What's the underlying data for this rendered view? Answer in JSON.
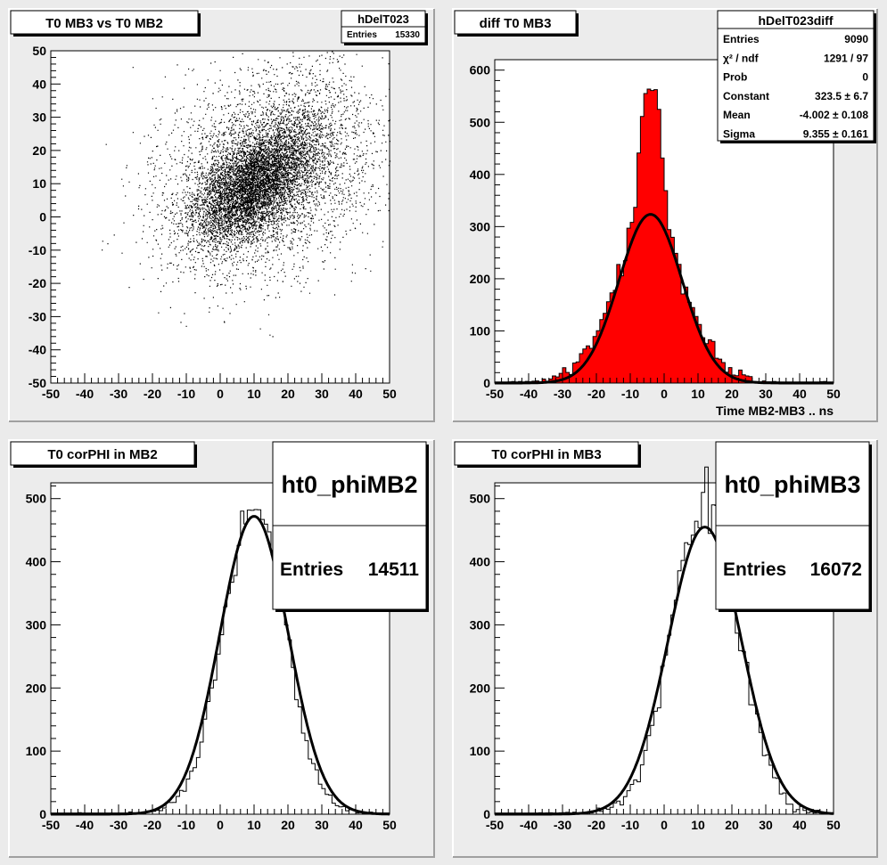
{
  "chart_data": [
    {
      "type": "scatter",
      "panel_title": "T0 MB3 vs T0 MB2",
      "stats": {
        "name": "hDelT023",
        "rows": [
          {
            "label": "Entries",
            "value": "15330"
          }
        ]
      },
      "xlim": [
        -50,
        50
      ],
      "ylim": [
        -50,
        50
      ],
      "x_ticks": [
        -50,
        -40,
        -30,
        -20,
        -10,
        0,
        10,
        20,
        30,
        40,
        50
      ],
      "y_ticks": [
        -50,
        -40,
        -30,
        -20,
        -10,
        0,
        10,
        20,
        30,
        40,
        50
      ],
      "xlabel": "",
      "ylabel": "",
      "clusters": [
        {
          "cx": 10,
          "cy": 10,
          "sx": 9,
          "sy": 9,
          "rho": 0.55,
          "fraction": 0.6
        },
        {
          "cx": 15,
          "cy": 15,
          "sx": 16,
          "sy": 16,
          "rho": 0.25,
          "fraction": 0.4
        }
      ],
      "color": "#000000"
    },
    {
      "type": "bar",
      "panel_title": "diff T0 MB3",
      "stats": {
        "name": "hDelT023diff",
        "rows": [
          {
            "label": "Entries",
            "value": "9090"
          },
          {
            "label": "χ² / ndf",
            "value": "1291 / 97"
          },
          {
            "label": "Prob",
            "value": "0"
          },
          {
            "label": "Constant",
            "value": "323.5 ± 6.7"
          },
          {
            "label": "Mean",
            "value": "-4.002 ± 0.108"
          },
          {
            "label": "Sigma",
            "value": "9.355 ± 0.161"
          }
        ]
      },
      "xlim": [
        -50,
        50
      ],
      "ylim": [
        0,
        620
      ],
      "x_ticks": [
        -50,
        -40,
        -30,
        -20,
        -10,
        0,
        10,
        20,
        30,
        40,
        50
      ],
      "y_ticks": [
        0,
        100,
        200,
        300,
        400,
        500,
        600
      ],
      "xlabel": "Time MB2-MB3  ..  ns",
      "ylabel": "",
      "histogram": {
        "bins_from": -50,
        "bin_width": 1,
        "shape": "peak",
        "mean": -4,
        "sigma": 3.3,
        "peak": 570,
        "core": 0.55,
        "wide_sigma": 11,
        "tail": 18,
        "tail_scale": 14,
        "min": 2
      },
      "fit": {
        "type": "gaus",
        "constant": 323.5,
        "mean": -4.002,
        "sigma": 9.355
      },
      "fill_color": "#ff0000"
    },
    {
      "type": "bar",
      "panel_title": "T0 corPHI in MB2",
      "stats": {
        "name": "ht0_phiMB2",
        "rows": [
          {
            "label": "Entries",
            "value": "14511"
          }
        ]
      },
      "xlim": [
        -50,
        50
      ],
      "ylim": [
        0,
        525
      ],
      "x_ticks": [
        -50,
        -40,
        -30,
        -20,
        -10,
        0,
        10,
        20,
        30,
        40,
        50
      ],
      "y_ticks": [
        0,
        100,
        200,
        300,
        400,
        500
      ],
      "xlabel": "",
      "ylabel": "",
      "histogram": {
        "bins_from": -50,
        "bin_width": 1,
        "shape": "gauss",
        "mean": 10,
        "sigma": 9.2,
        "peak": 478,
        "tail": 8,
        "tail_scale": 20,
        "min": 2
      },
      "fit": {
        "type": "gaus",
        "constant": 472,
        "mean": 10,
        "sigma": 10.1
      },
      "fill_color": "none"
    },
    {
      "type": "bar",
      "panel_title": "T0 corPHI in MB3",
      "stats": {
        "name": "ht0_phiMB3",
        "rows": [
          {
            "label": "Entries",
            "value": "16072"
          }
        ]
      },
      "xlim": [
        -50,
        50
      ],
      "ylim": [
        0,
        525
      ],
      "x_ticks": [
        -50,
        -40,
        -30,
        -20,
        -10,
        0,
        10,
        20,
        30,
        40,
        50
      ],
      "y_ticks": [
        0,
        100,
        200,
        300,
        400,
        500
      ],
      "xlabel": "",
      "ylabel": "",
      "histogram": {
        "bins_from": -50,
        "bin_width": 1,
        "shape": "gauss",
        "mean": 12,
        "sigma": 9.8,
        "peak": 478,
        "tail": 12,
        "tail_scale": 18,
        "min": 2
      },
      "fit": {
        "type": "gaus",
        "constant": 455,
        "mean": 12,
        "sigma": 10.8
      },
      "fill_color": "none"
    }
  ]
}
